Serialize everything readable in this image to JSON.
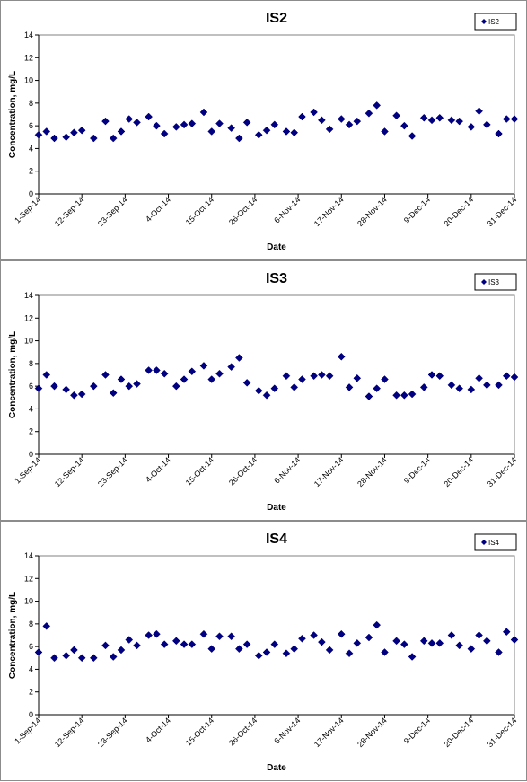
{
  "chart_data": [
    {
      "type": "scatter",
      "title": "IS2",
      "xlabel": "Date",
      "ylabel": "Concentration, mg/L",
      "ylim": [
        0,
        14
      ],
      "yticks": [
        0,
        2,
        4,
        6,
        8,
        10,
        12,
        14
      ],
      "xticks": [
        "1-Sep-14",
        "12-Sep-14",
        "23-Sep-14",
        "4-Oct-14",
        "15-Oct-14",
        "26-Oct-14",
        "6-Nov-14",
        "17-Nov-14",
        "28-Nov-14",
        "9-Dec-14",
        "20-Dec-14",
        "31-Dec-14"
      ],
      "xlim": [
        "2014-09-01",
        "2014-12-31"
      ],
      "legend": "top-right",
      "marker_color": "#000080",
      "series": [
        {
          "name": "IS2",
          "x": [
            "2014-09-01",
            "2014-09-03",
            "2014-09-05",
            "2014-09-08",
            "2014-09-10",
            "2014-09-12",
            "2014-09-15",
            "2014-09-18",
            "2014-09-20",
            "2014-09-22",
            "2014-09-24",
            "2014-09-26",
            "2014-09-29",
            "2014-10-01",
            "2014-10-03",
            "2014-10-06",
            "2014-10-08",
            "2014-10-10",
            "2014-10-13",
            "2014-10-15",
            "2014-10-17",
            "2014-10-20",
            "2014-10-22",
            "2014-10-24",
            "2014-10-27",
            "2014-10-29",
            "2014-10-31",
            "2014-11-03",
            "2014-11-05",
            "2014-11-07",
            "2014-11-10",
            "2014-11-12",
            "2014-11-14",
            "2014-11-17",
            "2014-11-19",
            "2014-11-21",
            "2014-11-24",
            "2014-11-26",
            "2014-11-28",
            "2014-12-01",
            "2014-12-03",
            "2014-12-05",
            "2014-12-08",
            "2014-12-10",
            "2014-12-12",
            "2014-12-15",
            "2014-12-17",
            "2014-12-20",
            "2014-12-22",
            "2014-12-24",
            "2014-12-27",
            "2014-12-29",
            "2014-12-31"
          ],
          "y": [
            5.2,
            5.5,
            4.9,
            5.0,
            5.4,
            5.6,
            4.9,
            6.4,
            4.9,
            5.5,
            6.6,
            6.3,
            6.8,
            6.0,
            5.3,
            5.9,
            6.1,
            6.2,
            7.2,
            5.5,
            6.2,
            5.8,
            4.9,
            6.3,
            5.2,
            5.6,
            6.1,
            5.5,
            5.4,
            6.8,
            7.2,
            6.5,
            5.7,
            6.6,
            6.1,
            6.4,
            7.1,
            7.8,
            5.5,
            6.9,
            6.0,
            5.1,
            6.7,
            6.5,
            6.7,
            6.5,
            6.4,
            5.9,
            7.3,
            6.1,
            5.3,
            6.6,
            6.6
          ]
        }
      ]
    },
    {
      "type": "scatter",
      "title": "IS3",
      "xlabel": "Date",
      "ylabel": "Concentration, mg/L",
      "ylim": [
        0,
        14
      ],
      "yticks": [
        0,
        2,
        4,
        6,
        8,
        10,
        12,
        14
      ],
      "xticks": [
        "1-Sep-14",
        "12-Sep-14",
        "23-Sep-14",
        "4-Oct-14",
        "15-Oct-14",
        "26-Oct-14",
        "6-Nov-14",
        "17-Nov-14",
        "28-Nov-14",
        "9-Dec-14",
        "20-Dec-14",
        "31-Dec-14"
      ],
      "xlim": [
        "2014-09-01",
        "2014-12-31"
      ],
      "legend": "top-right",
      "marker_color": "#000080",
      "series": [
        {
          "name": "IS3",
          "x": [
            "2014-09-01",
            "2014-09-03",
            "2014-09-05",
            "2014-09-08",
            "2014-09-10",
            "2014-09-12",
            "2014-09-15",
            "2014-09-18",
            "2014-09-20",
            "2014-09-22",
            "2014-09-24",
            "2014-09-26",
            "2014-09-29",
            "2014-10-01",
            "2014-10-03",
            "2014-10-06",
            "2014-10-08",
            "2014-10-10",
            "2014-10-13",
            "2014-10-15",
            "2014-10-17",
            "2014-10-20",
            "2014-10-22",
            "2014-10-24",
            "2014-10-27",
            "2014-10-29",
            "2014-10-31",
            "2014-11-03",
            "2014-11-05",
            "2014-11-07",
            "2014-11-10",
            "2014-11-12",
            "2014-11-14",
            "2014-11-17",
            "2014-11-19",
            "2014-11-21",
            "2014-11-24",
            "2014-11-26",
            "2014-11-28",
            "2014-12-01",
            "2014-12-03",
            "2014-12-05",
            "2014-12-08",
            "2014-12-10",
            "2014-12-12",
            "2014-12-15",
            "2014-12-17",
            "2014-12-20",
            "2014-12-22",
            "2014-12-24",
            "2014-12-27",
            "2014-12-29",
            "2014-12-31"
          ],
          "y": [
            5.8,
            7.0,
            6.0,
            5.7,
            5.2,
            5.3,
            6.0,
            7.0,
            5.4,
            6.6,
            6.0,
            6.2,
            7.4,
            7.4,
            7.1,
            6.0,
            6.6,
            7.3,
            7.8,
            6.6,
            7.1,
            7.7,
            8.5,
            6.3,
            5.6,
            5.2,
            5.8,
            6.9,
            5.9,
            6.6,
            6.9,
            7.0,
            6.9,
            8.6,
            5.9,
            6.7,
            5.1,
            5.8,
            6.6,
            5.2,
            5.2,
            5.3,
            5.9,
            7.0,
            6.9,
            6.1,
            5.8,
            5.7,
            6.7,
            6.1,
            6.1,
            6.9,
            6.8
          ]
        }
      ]
    },
    {
      "type": "scatter",
      "title": "IS4",
      "xlabel": "Date",
      "ylabel": "Concentration, mg/L",
      "ylim": [
        0,
        14
      ],
      "yticks": [
        0,
        2,
        4,
        6,
        8,
        10,
        12,
        14
      ],
      "xticks": [
        "1-Sep-14",
        "12-Sep-14",
        "23-Sep-14",
        "4-Oct-14",
        "15-Oct-14",
        "26-Oct-14",
        "6-Nov-14",
        "17-Nov-14",
        "28-Nov-14",
        "9-Dec-14",
        "20-Dec-14",
        "31-Dec-14"
      ],
      "xlim": [
        "2014-09-01",
        "2014-12-31"
      ],
      "legend": "top-right",
      "marker_color": "#000080",
      "series": [
        {
          "name": "IS4",
          "x": [
            "2014-09-01",
            "2014-09-03",
            "2014-09-05",
            "2014-09-08",
            "2014-09-10",
            "2014-09-12",
            "2014-09-15",
            "2014-09-18",
            "2014-09-20",
            "2014-09-22",
            "2014-09-24",
            "2014-09-26",
            "2014-09-29",
            "2014-10-01",
            "2014-10-03",
            "2014-10-06",
            "2014-10-08",
            "2014-10-10",
            "2014-10-13",
            "2014-10-15",
            "2014-10-17",
            "2014-10-20",
            "2014-10-22",
            "2014-10-24",
            "2014-10-27",
            "2014-10-29",
            "2014-10-31",
            "2014-11-03",
            "2014-11-05",
            "2014-11-07",
            "2014-11-10",
            "2014-11-12",
            "2014-11-14",
            "2014-11-17",
            "2014-11-19",
            "2014-11-21",
            "2014-11-24",
            "2014-11-26",
            "2014-11-28",
            "2014-12-01",
            "2014-12-03",
            "2014-12-05",
            "2014-12-08",
            "2014-12-10",
            "2014-12-12",
            "2014-12-15",
            "2014-12-17",
            "2014-12-20",
            "2014-12-22",
            "2014-12-24",
            "2014-12-27",
            "2014-12-29",
            "2014-12-31"
          ],
          "y": [
            5.5,
            7.8,
            5.0,
            5.2,
            5.7,
            5.0,
            5.0,
            6.1,
            5.1,
            5.7,
            6.6,
            6.1,
            7.0,
            7.1,
            6.2,
            6.5,
            6.2,
            6.2,
            7.1,
            5.8,
            6.9,
            6.9,
            5.8,
            6.2,
            5.2,
            5.5,
            6.2,
            5.4,
            5.8,
            6.7,
            7.0,
            6.4,
            5.7,
            7.1,
            5.4,
            6.3,
            6.8,
            7.9,
            5.5,
            6.5,
            6.2,
            5.1,
            6.5,
            6.3,
            6.3,
            7.0,
            6.1,
            5.8,
            7.0,
            6.5,
            5.5,
            7.3,
            6.6
          ]
        }
      ]
    }
  ]
}
